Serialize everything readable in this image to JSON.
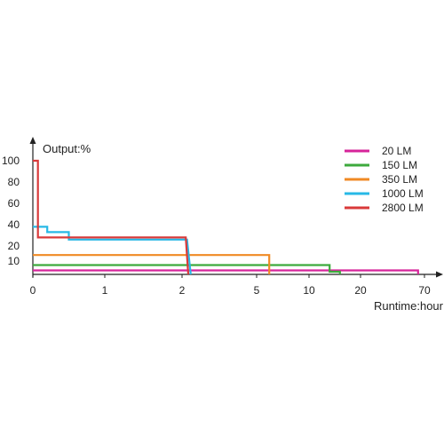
{
  "chart_data": {
    "type": "line",
    "title": "",
    "ylabel": "Output:%",
    "xlabel": "Runtime:hour",
    "x_ticks": [
      "0",
      "1",
      "2",
      "5",
      "10",
      "20",
      "70"
    ],
    "x_tick_values": [
      0,
      1,
      2,
      5,
      10,
      20,
      70
    ],
    "y_ticks": [
      "10",
      "20",
      "40",
      "60",
      "80",
      "100"
    ],
    "y_tick_values": [
      10,
      20,
      40,
      60,
      80,
      100
    ],
    "x_scale": "nonlinear (as printed tick spacing)",
    "ylim": [
      0,
      100
    ],
    "grid": false,
    "legend_position": "top-right",
    "series": [
      {
        "name": "20 LM",
        "color": "#d6249a",
        "points": [
          [
            0,
            3
          ],
          [
            65,
            3
          ],
          [
            65,
            0
          ]
        ]
      },
      {
        "name": "150 LM",
        "color": "#3daa3d",
        "points": [
          [
            0,
            7
          ],
          [
            14,
            7
          ],
          [
            14,
            2
          ],
          [
            16,
            2
          ],
          [
            16,
            0
          ]
        ]
      },
      {
        "name": "350 LM",
        "color": "#f08a24",
        "points": [
          [
            0,
            14
          ],
          [
            6.2,
            14
          ],
          [
            6.2,
            0
          ]
        ]
      },
      {
        "name": "1000 LM",
        "color": "#27b8e6",
        "points": [
          [
            0,
            38
          ],
          [
            0.2,
            38
          ],
          [
            0.2,
            33
          ],
          [
            0.5,
            33
          ],
          [
            0.5,
            26
          ],
          [
            2.2,
            26
          ],
          [
            2.35,
            0
          ]
        ]
      },
      {
        "name": "2800 LM",
        "color": "#d93a3a",
        "points": [
          [
            0,
            100
          ],
          [
            0.07,
            100
          ],
          [
            0.07,
            28
          ],
          [
            2.15,
            28
          ],
          [
            2.25,
            0
          ]
        ]
      }
    ]
  }
}
